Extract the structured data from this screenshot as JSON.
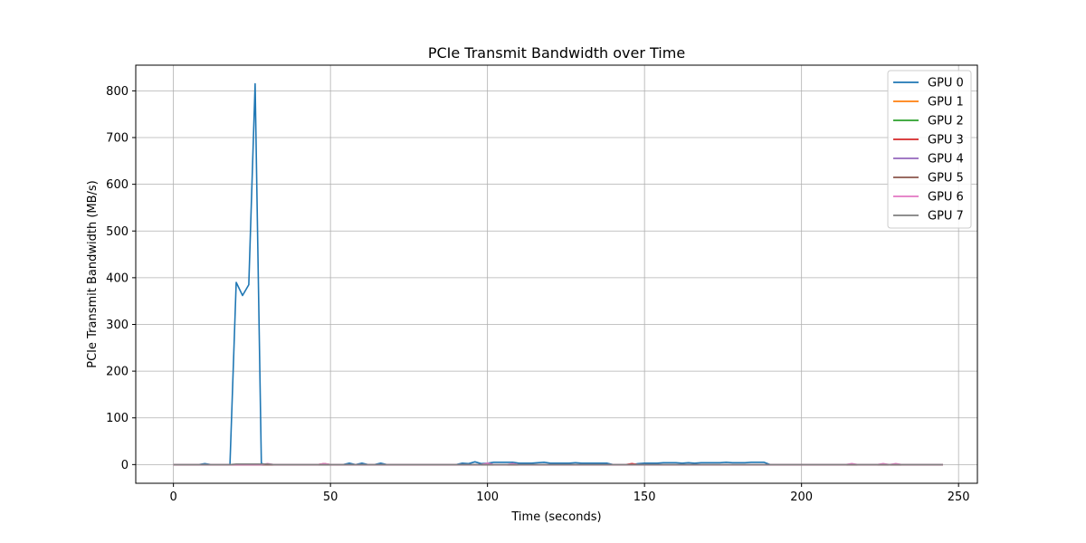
{
  "chart_data": {
    "type": "line",
    "title": "PCIe Transmit Bandwidth over Time",
    "xlabel": "Time (seconds)",
    "ylabel": "PCIe Transmit Bandwidth (MB/s)",
    "xlim": [
      -12,
      256
    ],
    "ylim": [
      -40,
      855
    ],
    "xticks": [
      0,
      50,
      100,
      150,
      200,
      250
    ],
    "yticks": [
      0,
      100,
      200,
      300,
      400,
      500,
      600,
      700,
      800
    ],
    "grid": true,
    "legend_position": "top-right",
    "x": [
      0,
      2,
      4,
      6,
      8,
      10,
      12,
      14,
      16,
      18,
      20,
      22,
      24,
      26,
      28,
      30,
      32,
      34,
      36,
      38,
      40,
      42,
      44,
      46,
      48,
      50,
      52,
      54,
      56,
      58,
      60,
      62,
      64,
      66,
      68,
      70,
      72,
      74,
      76,
      78,
      80,
      82,
      84,
      86,
      88,
      90,
      92,
      94,
      96,
      98,
      100,
      102,
      104,
      106,
      108,
      110,
      112,
      114,
      116,
      118,
      120,
      122,
      124,
      126,
      128,
      130,
      132,
      134,
      136,
      138,
      140,
      142,
      144,
      146,
      148,
      150,
      152,
      154,
      156,
      158,
      160,
      162,
      164,
      166,
      168,
      170,
      172,
      174,
      176,
      178,
      180,
      182,
      184,
      186,
      188,
      190,
      192,
      194,
      196,
      198,
      200,
      202,
      204,
      206,
      208,
      210,
      212,
      214,
      216,
      218,
      220,
      222,
      224,
      226,
      228,
      230,
      232,
      234,
      236,
      238,
      240,
      242,
      244,
      245
    ],
    "series": [
      {
        "name": "GPU 0",
        "color": "#1f77b4",
        "values": [
          0,
          0,
          0,
          0,
          0,
          2,
          0,
          0,
          0,
          0,
          390,
          362,
          385,
          815,
          2,
          0,
          0,
          0,
          0,
          0,
          0,
          0,
          0,
          0,
          0,
          0,
          0,
          0,
          3,
          0,
          3,
          0,
          0,
          3,
          0,
          0,
          0,
          0,
          0,
          0,
          0,
          0,
          0,
          0,
          0,
          0,
          3,
          2,
          6,
          2,
          3,
          5,
          5,
          5,
          5,
          3,
          3,
          3,
          4,
          5,
          3,
          3,
          3,
          3,
          4,
          3,
          3,
          3,
          3,
          3,
          0,
          0,
          0,
          0,
          2,
          3,
          3,
          3,
          4,
          4,
          4,
          3,
          4,
          3,
          4,
          4,
          4,
          4,
          5,
          4,
          4,
          4,
          5,
          5,
          5,
          0,
          0,
          0,
          0,
          0,
          0,
          0,
          0,
          0,
          0,
          0,
          0,
          0,
          0,
          0,
          0,
          0,
          0,
          0,
          0,
          0,
          0,
          0,
          0,
          0,
          0,
          0,
          0,
          0
        ]
      },
      {
        "name": "GPU 1",
        "color": "#ff7f0e",
        "values": [
          0,
          0,
          0,
          0,
          0,
          0,
          0,
          0,
          0,
          0,
          0,
          0,
          0,
          0,
          0,
          0,
          0,
          0,
          0,
          0,
          0,
          0,
          0,
          0,
          0,
          0,
          0,
          0,
          0,
          0,
          0,
          0,
          0,
          0,
          0,
          0,
          0,
          0,
          0,
          0,
          0,
          0,
          0,
          0,
          0,
          0,
          0,
          0,
          0,
          0,
          0,
          0,
          0,
          0,
          0,
          0,
          0,
          0,
          0,
          0,
          0,
          0,
          0,
          0,
          0,
          0,
          0,
          0,
          0,
          0,
          0,
          0,
          0,
          0,
          0,
          0,
          0,
          0,
          0,
          0,
          0,
          0,
          0,
          0,
          0,
          0,
          0,
          0,
          0,
          0,
          0,
          0,
          0,
          0,
          0,
          0,
          0,
          0,
          0,
          0,
          0,
          0,
          0,
          0,
          0,
          0,
          0,
          0,
          0,
          0,
          0,
          0,
          0,
          0,
          0,
          0,
          0,
          0,
          0,
          0,
          0,
          0,
          0,
          0
        ]
      },
      {
        "name": "GPU 2",
        "color": "#2ca02c",
        "values": [
          0,
          0,
          0,
          0,
          0,
          0,
          0,
          0,
          0,
          0,
          0,
          0,
          0,
          0,
          0,
          0,
          0,
          0,
          0,
          0,
          0,
          0,
          0,
          0,
          0,
          0,
          0,
          0,
          0,
          0,
          0,
          0,
          0,
          0,
          0,
          0,
          0,
          0,
          0,
          0,
          0,
          0,
          0,
          0,
          0,
          0,
          0,
          0,
          0,
          0,
          0,
          0,
          0,
          0,
          0,
          0,
          0,
          0,
          0,
          0,
          0,
          0,
          0,
          0,
          0,
          0,
          0,
          0,
          0,
          0,
          0,
          0,
          0,
          0,
          0,
          0,
          0,
          0,
          0,
          0,
          0,
          0,
          0,
          0,
          0,
          0,
          0,
          0,
          0,
          0,
          0,
          0,
          0,
          0,
          0,
          0,
          0,
          0,
          0,
          0,
          0,
          0,
          0,
          0,
          0,
          0,
          0,
          0,
          0,
          0,
          0,
          0,
          0,
          0,
          0,
          0,
          0,
          0,
          0,
          0,
          0,
          0,
          0,
          0
        ]
      },
      {
        "name": "GPU 3",
        "color": "#d62728",
        "values": [
          0,
          0,
          0,
          0,
          0,
          0,
          0,
          0,
          0,
          0,
          0,
          0,
          0,
          0,
          0,
          0,
          0,
          0,
          0,
          0,
          0,
          0,
          0,
          0,
          2,
          0,
          0,
          0,
          0,
          0,
          0,
          0,
          0,
          0,
          0,
          0,
          0,
          0,
          0,
          0,
          0,
          0,
          0,
          0,
          0,
          0,
          0,
          0,
          0,
          0,
          2,
          0,
          0,
          0,
          0,
          0,
          0,
          0,
          0,
          0,
          0,
          0,
          0,
          0,
          0,
          0,
          0,
          0,
          0,
          0,
          0,
          0,
          0,
          2,
          0,
          0,
          0,
          0,
          0,
          0,
          0,
          0,
          0,
          0,
          0,
          0,
          0,
          0,
          0,
          0,
          0,
          0,
          0,
          0,
          0,
          0,
          0,
          0,
          0,
          0,
          0,
          0,
          0,
          0,
          0,
          0,
          0,
          0,
          0,
          0,
          0,
          0,
          0,
          0,
          0,
          0,
          0,
          0,
          0,
          0,
          0,
          0,
          0,
          0
        ]
      },
      {
        "name": "GPU 4",
        "color": "#9467bd",
        "values": [
          0,
          0,
          0,
          0,
          0,
          0,
          0,
          0,
          0,
          0,
          0,
          0,
          0,
          0,
          0,
          0,
          0,
          0,
          0,
          0,
          0,
          0,
          0,
          0,
          0,
          0,
          0,
          0,
          0,
          0,
          0,
          0,
          0,
          0,
          0,
          0,
          0,
          0,
          0,
          0,
          0,
          0,
          0,
          0,
          0,
          0,
          0,
          0,
          0,
          0,
          0,
          0,
          0,
          0,
          0,
          0,
          0,
          0,
          0,
          0,
          0,
          0,
          0,
          0,
          0,
          0,
          0,
          0,
          0,
          0,
          0,
          0,
          0,
          0,
          0,
          0,
          0,
          0,
          0,
          0,
          0,
          0,
          0,
          0,
          0,
          0,
          0,
          0,
          0,
          0,
          0,
          0,
          0,
          0,
          0,
          0,
          0,
          0,
          0,
          0,
          0,
          0,
          0,
          0,
          0,
          0,
          0,
          0,
          0,
          0,
          0,
          0,
          0,
          0,
          0,
          0,
          0,
          0,
          0,
          0,
          0,
          0,
          0,
          0
        ]
      },
      {
        "name": "GPU 5",
        "color": "#8c564b",
        "values": [
          0,
          0,
          0,
          0,
          0,
          0,
          0,
          0,
          0,
          0,
          0,
          0,
          0,
          0,
          0,
          0,
          0,
          0,
          0,
          0,
          0,
          0,
          0,
          0,
          0,
          0,
          0,
          0,
          0,
          0,
          0,
          0,
          0,
          0,
          0,
          0,
          0,
          0,
          0,
          0,
          0,
          0,
          0,
          0,
          0,
          0,
          0,
          0,
          0,
          0,
          0,
          0,
          0,
          0,
          0,
          0,
          0,
          0,
          0,
          0,
          0,
          0,
          0,
          0,
          0,
          0,
          0,
          0,
          0,
          0,
          0,
          0,
          0,
          0,
          0,
          0,
          0,
          0,
          0,
          0,
          0,
          0,
          0,
          0,
          0,
          0,
          0,
          0,
          0,
          0,
          0,
          0,
          0,
          0,
          0,
          0,
          0,
          0,
          0,
          0,
          0,
          0,
          0,
          0,
          0,
          0,
          0,
          0,
          0,
          0,
          0,
          0,
          0,
          0,
          0,
          0,
          0,
          0,
          0,
          0,
          0,
          0,
          0,
          0
        ]
      },
      {
        "name": "GPU 6",
        "color": "#e377c2",
        "values": [
          0,
          0,
          0,
          0,
          0,
          0,
          0,
          0,
          0,
          0,
          0,
          0,
          0,
          0,
          0,
          2,
          0,
          0,
          0,
          0,
          0,
          0,
          0,
          0,
          2,
          0,
          0,
          0,
          0,
          0,
          0,
          0,
          0,
          0,
          0,
          0,
          0,
          0,
          0,
          0,
          0,
          0,
          0,
          0,
          0,
          0,
          0,
          0,
          0,
          0,
          3,
          0,
          0,
          0,
          2,
          0,
          0,
          0,
          0,
          0,
          0,
          0,
          0,
          0,
          0,
          0,
          0,
          0,
          0,
          0,
          0,
          0,
          0,
          0,
          0,
          0,
          0,
          0,
          0,
          0,
          0,
          0,
          0,
          0,
          0,
          0,
          0,
          0,
          0,
          0,
          0,
          0,
          0,
          0,
          0,
          0,
          0,
          0,
          0,
          0,
          0,
          0,
          0,
          0,
          0,
          0,
          0,
          0,
          2,
          0,
          0,
          0,
          0,
          2,
          0,
          2,
          0,
          0,
          0,
          0,
          0,
          0,
          0,
          0
        ]
      },
      {
        "name": "GPU 7",
        "color": "#7f7f7f",
        "values": [
          0,
          0,
          0,
          0,
          0,
          0,
          0,
          0,
          0,
          0,
          1,
          1,
          1,
          1,
          1,
          1,
          0,
          0,
          0,
          0,
          0,
          0,
          0,
          0,
          0,
          0,
          0,
          0,
          0,
          0,
          0,
          0,
          0,
          0,
          0,
          0,
          0,
          0,
          0,
          0,
          0,
          0,
          0,
          0,
          0,
          0,
          0,
          0,
          0,
          0,
          0,
          0,
          0,
          0,
          0,
          0,
          0,
          0,
          0,
          0,
          0,
          0,
          0,
          0,
          0,
          0,
          0,
          0,
          0,
          0,
          0,
          0,
          0,
          0,
          0,
          0,
          0,
          0,
          0,
          0,
          0,
          0,
          0,
          0,
          0,
          0,
          0,
          0,
          0,
          0,
          0,
          0,
          0,
          0,
          0,
          0,
          0,
          0,
          0,
          0,
          0,
          0,
          0,
          0,
          0,
          0,
          0,
          0,
          0,
          0,
          0,
          0,
          0,
          0,
          0,
          0,
          0,
          0,
          0,
          0,
          0,
          0,
          0,
          0
        ]
      }
    ]
  }
}
